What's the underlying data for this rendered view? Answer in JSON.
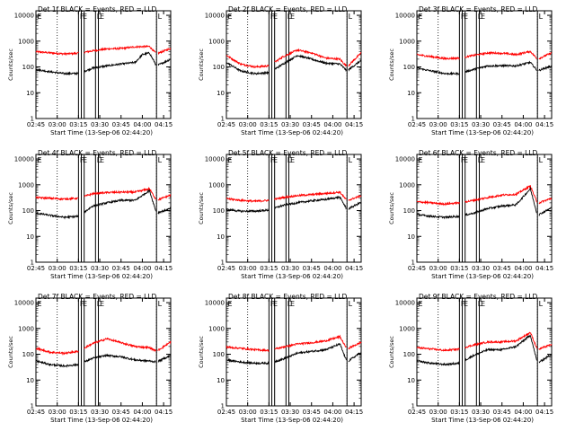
{
  "chart_data": {
    "type": "line",
    "x_tick_labels": [
      "02:45",
      "03:00",
      "03:15",
      "03:30",
      "03:45",
      "04:00",
      "04:15"
    ],
    "y_tick_labels": [
      "1",
      "10",
      "100",
      "1000",
      "10000"
    ],
    "xlabel": "Start Time (13-Sep-06 02:44:20)",
    "ylabel": "Counts/sec",
    "x_range_minutes": [
      0,
      95
    ],
    "y_scale": "log",
    "ylim": [
      1,
      15000
    ],
    "series_colors": {
      "Events": "#000000",
      "LLD": "#ff0000"
    },
    "markers": {
      "dotted_x_minutes": [
        15,
        85
      ],
      "solid_x_minutes": [
        30,
        32,
        34,
        42,
        44,
        85
      ],
      "flag_labels": [
        "E",
        "F",
        "E",
        "L",
        "E",
        "L"
      ]
    },
    "panels": [
      {
        "title": "Det 1f BLACK = Events, RED = LLD",
        "events": [
          [
            0,
            80
          ],
          [
            10,
            65
          ],
          [
            20,
            55
          ],
          [
            30,
            56
          ],
          [
            40,
            90
          ],
          [
            50,
            110
          ],
          [
            60,
            130
          ],
          [
            70,
            150
          ],
          [
            75,
            300
          ],
          [
            80,
            350
          ],
          [
            85,
            110
          ],
          [
            95,
            200
          ]
        ],
        "lld": [
          [
            0,
            390
          ],
          [
            10,
            350
          ],
          [
            20,
            320
          ],
          [
            30,
            340
          ],
          [
            40,
            420
          ],
          [
            50,
            500
          ],
          [
            60,
            520
          ],
          [
            70,
            600
          ],
          [
            80,
            620
          ],
          [
            85,
            320
          ],
          [
            95,
            520
          ]
        ]
      },
      {
        "title": "Det 2f BLACK = Events, RED = LLD",
        "events": [
          [
            0,
            150
          ],
          [
            10,
            70
          ],
          [
            20,
            55
          ],
          [
            30,
            60
          ],
          [
            40,
            130
          ],
          [
            50,
            280
          ],
          [
            60,
            200
          ],
          [
            70,
            140
          ],
          [
            80,
            130
          ],
          [
            85,
            70
          ],
          [
            95,
            180
          ]
        ],
        "lld": [
          [
            0,
            280
          ],
          [
            10,
            130
          ],
          [
            20,
            100
          ],
          [
            30,
            110
          ],
          [
            40,
            250
          ],
          [
            50,
            450
          ],
          [
            60,
            350
          ],
          [
            70,
            220
          ],
          [
            80,
            200
          ],
          [
            85,
            100
          ],
          [
            95,
            350
          ]
        ]
      },
      {
        "title": "Det 3f BLACK = Events, RED = LLD",
        "events": [
          [
            0,
            90
          ],
          [
            10,
            70
          ],
          [
            20,
            55
          ],
          [
            30,
            55
          ],
          [
            40,
            80
          ],
          [
            50,
            110
          ],
          [
            60,
            110
          ],
          [
            70,
            110
          ],
          [
            80,
            150
          ],
          [
            85,
            70
          ],
          [
            95,
            110
          ]
        ],
        "lld": [
          [
            0,
            300
          ],
          [
            10,
            250
          ],
          [
            20,
            210
          ],
          [
            30,
            220
          ],
          [
            40,
            280
          ],
          [
            50,
            350
          ],
          [
            60,
            340
          ],
          [
            70,
            300
          ],
          [
            80,
            400
          ],
          [
            85,
            200
          ],
          [
            95,
            350
          ]
        ]
      },
      {
        "title": "Det 4f BLACK = Events, RED = LLD",
        "events": [
          [
            0,
            80
          ],
          [
            10,
            65
          ],
          [
            20,
            55
          ],
          [
            30,
            60
          ],
          [
            40,
            150
          ],
          [
            50,
            200
          ],
          [
            60,
            250
          ],
          [
            70,
            250
          ],
          [
            80,
            600
          ],
          [
            85,
            80
          ],
          [
            95,
            120
          ]
        ],
        "lld": [
          [
            0,
            320
          ],
          [
            10,
            300
          ],
          [
            20,
            280
          ],
          [
            30,
            300
          ],
          [
            40,
            450
          ],
          [
            50,
            500
          ],
          [
            60,
            520
          ],
          [
            70,
            520
          ],
          [
            80,
            700
          ],
          [
            85,
            250
          ],
          [
            95,
            400
          ]
        ]
      },
      {
        "title": "Det 5f BLACK = Events, RED = LLD",
        "events": [
          [
            0,
            110
          ],
          [
            10,
            95
          ],
          [
            20,
            95
          ],
          [
            30,
            105
          ],
          [
            40,
            160
          ],
          [
            50,
            200
          ],
          [
            60,
            240
          ],
          [
            70,
            270
          ],
          [
            80,
            330
          ],
          [
            85,
            110
          ],
          [
            95,
            210
          ]
        ],
        "lld": [
          [
            0,
            290
          ],
          [
            10,
            250
          ],
          [
            20,
            230
          ],
          [
            30,
            250
          ],
          [
            40,
            320
          ],
          [
            50,
            380
          ],
          [
            60,
            420
          ],
          [
            70,
            460
          ],
          [
            80,
            520
          ],
          [
            85,
            240
          ],
          [
            95,
            380
          ]
        ]
      },
      {
        "title": "Det 6f BLACK = Events, RED = LLD",
        "events": [
          [
            0,
            70
          ],
          [
            10,
            60
          ],
          [
            20,
            55
          ],
          [
            30,
            60
          ],
          [
            40,
            80
          ],
          [
            50,
            120
          ],
          [
            60,
            150
          ],
          [
            70,
            170
          ],
          [
            80,
            700
          ],
          [
            85,
            65
          ],
          [
            95,
            130
          ]
        ],
        "lld": [
          [
            0,
            220
          ],
          [
            10,
            200
          ],
          [
            20,
            180
          ],
          [
            30,
            200
          ],
          [
            40,
            250
          ],
          [
            50,
            320
          ],
          [
            60,
            400
          ],
          [
            70,
            430
          ],
          [
            80,
            900
          ],
          [
            85,
            190
          ],
          [
            95,
            300
          ]
        ]
      },
      {
        "title": "Det 7f BLACK = Events, RED = LLD",
        "events": [
          [
            0,
            55
          ],
          [
            10,
            40
          ],
          [
            20,
            35
          ],
          [
            30,
            40
          ],
          [
            40,
            70
          ],
          [
            50,
            90
          ],
          [
            60,
            80
          ],
          [
            70,
            60
          ],
          [
            80,
            55
          ],
          [
            85,
            50
          ],
          [
            95,
            90
          ]
        ],
        "lld": [
          [
            0,
            170
          ],
          [
            10,
            120
          ],
          [
            20,
            110
          ],
          [
            30,
            130
          ],
          [
            40,
            260
          ],
          [
            50,
            400
          ],
          [
            60,
            280
          ],
          [
            70,
            200
          ],
          [
            80,
            180
          ],
          [
            85,
            130
          ],
          [
            95,
            300
          ]
        ]
      },
      {
        "title": "Det 8f BLACK = Events, RED = LLD",
        "events": [
          [
            0,
            60
          ],
          [
            10,
            50
          ],
          [
            20,
            45
          ],
          [
            30,
            45
          ],
          [
            40,
            65
          ],
          [
            50,
            110
          ],
          [
            60,
            130
          ],
          [
            70,
            150
          ],
          [
            80,
            250
          ],
          [
            85,
            50
          ],
          [
            95,
            120
          ]
        ],
        "lld": [
          [
            0,
            190
          ],
          [
            10,
            170
          ],
          [
            20,
            150
          ],
          [
            30,
            140
          ],
          [
            40,
            190
          ],
          [
            50,
            250
          ],
          [
            60,
            280
          ],
          [
            70,
            330
          ],
          [
            80,
            480
          ],
          [
            85,
            160
          ],
          [
            95,
            290
          ]
        ]
      },
      {
        "title": "Det 9f BLACK = Events, RED = LLD",
        "events": [
          [
            0,
            55
          ],
          [
            10,
            45
          ],
          [
            20,
            40
          ],
          [
            30,
            45
          ],
          [
            40,
            90
          ],
          [
            50,
            150
          ],
          [
            60,
            150
          ],
          [
            70,
            200
          ],
          [
            80,
            550
          ],
          [
            85,
            45
          ],
          [
            95,
            100
          ]
        ],
        "lld": [
          [
            0,
            180
          ],
          [
            10,
            160
          ],
          [
            20,
            140
          ],
          [
            30,
            160
          ],
          [
            40,
            230
          ],
          [
            50,
            300
          ],
          [
            60,
            300
          ],
          [
            70,
            330
          ],
          [
            80,
            700
          ],
          [
            85,
            150
          ],
          [
            95,
            240
          ]
        ]
      }
    ]
  }
}
